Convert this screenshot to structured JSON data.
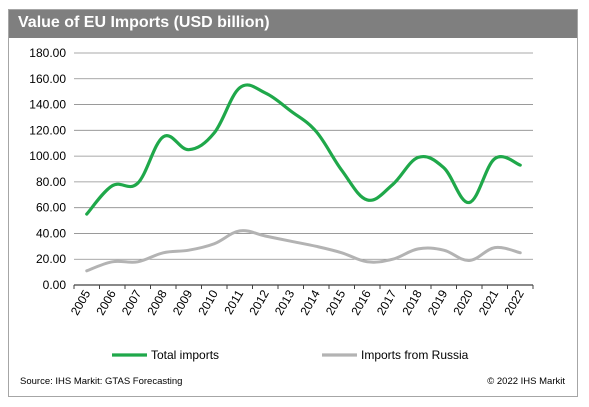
{
  "title": "Value of EU Imports (USD billion)",
  "source": "Source: IHS Markit: GTAS Forecasting",
  "copyright": "© 2022 IHS Markit",
  "colors": {
    "total": "#1fa84a",
    "russia": "#b3b3b3",
    "grid": "#8c8c8c",
    "header": "#7f7f7f"
  },
  "chart_data": {
    "type": "line",
    "title": "Value of EU Imports (USD billion)",
    "xlabel": "",
    "ylabel": "",
    "ylim": [
      0,
      180
    ],
    "y_ticks": [
      "0.00",
      "20.00",
      "40.00",
      "60.00",
      "80.00",
      "100.00",
      "120.00",
      "140.00",
      "160.00",
      "180.00"
    ],
    "x": [
      "2005",
      "2006",
      "2007",
      "2008",
      "2009",
      "2010",
      "2011",
      "2012",
      "2013",
      "2014",
      "2015",
      "2016",
      "2017",
      "2018",
      "2019",
      "2020",
      "2021",
      "2022"
    ],
    "grid": "horizontal",
    "legend_position": "bottom",
    "series": [
      {
        "name": "Total imports",
        "color": "#1fa84a",
        "values": [
          55,
          77,
          79,
          115,
          105,
          118,
          153,
          149,
          135,
          119,
          89,
          66,
          78,
          99,
          91,
          64,
          98,
          93
        ]
      },
      {
        "name": "Imports from Russia",
        "color": "#b3b3b3",
        "values": [
          11,
          18,
          18,
          25,
          27,
          32,
          42,
          38,
          34,
          30,
          25,
          18,
          20,
          28,
          27,
          19,
          29,
          25
        ]
      }
    ]
  }
}
